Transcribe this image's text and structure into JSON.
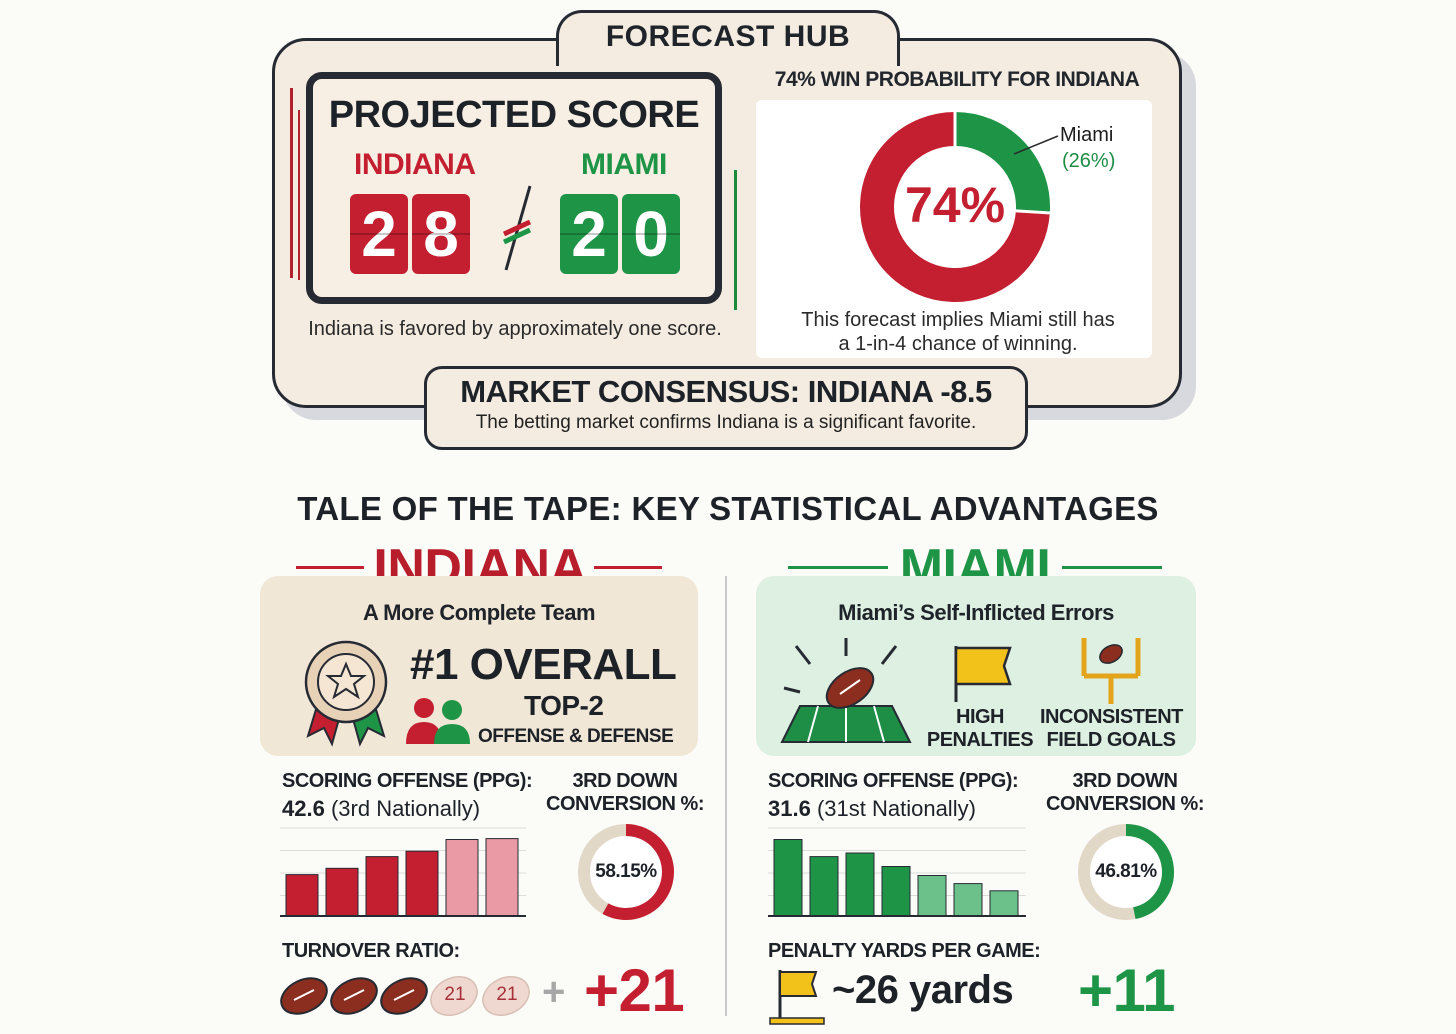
{
  "hub": {
    "title": "FORECAST HUB",
    "projected": {
      "title": "PROJECTED SCORE",
      "team_a": "INDIANA",
      "team_b": "MIAMI",
      "score_a_digits": [
        "2",
        "8"
      ],
      "score_b_digits": [
        "2",
        "0"
      ],
      "note": "Indiana is favored by approximately one score."
    },
    "probability": {
      "title": "74% WIN PROBABILITY FOR INDIANA",
      "center_label": "74%",
      "indiana_pct": 74,
      "miami_pct": 26,
      "miami_label": "Miami",
      "miami_pct_label": "(26%)",
      "note_line1": "This forecast implies Miami still has",
      "note_line2": "a 1-in-4 chance of winning."
    },
    "market": {
      "title": "MARKET CONSENSUS: INDIANA -8.5",
      "subtitle": "The betting market confirms Indiana is a significant favorite."
    }
  },
  "tape": {
    "title": "TALE OF THE TAPE: KEY STATISTICAL ADVANTAGES",
    "indiana": {
      "name": "INDIANA",
      "subtitle": "A More Complete Team",
      "overall": "#1 OVERALL",
      "top2": "TOP-2",
      "offense_defense": "OFFENSE & DEFENSE",
      "scoring_label": "SCORING OFFENSE (PPG):",
      "scoring_value": "42.6",
      "scoring_rank": "(3rd Nationally)",
      "third_down_line1": "3RD DOWN",
      "third_down_line2": "CONVERSION %:",
      "third_down_value": "58.15%",
      "third_down_pct": 58.15,
      "turnover_label": "TURNOVER RATIO:",
      "turnover_tag1": "21",
      "turnover_tag2": "21",
      "turnover_plus": "+",
      "turnover_value": "+21",
      "bars": [
        0.46,
        0.53,
        0.66,
        0.72,
        0.85,
        0.86
      ],
      "color": "#c41f30"
    },
    "miami": {
      "name": "MIAMI",
      "subtitle": "Miami’s Self-Inflicted Errors",
      "icon_high_line1": "HIGH",
      "icon_high_line2": "PENALTIES",
      "icon_fg_line1": "INCONSISTENT",
      "icon_fg_line2": "FIELD GOALS",
      "scoring_label": "SCORING OFFENSE (PPG):",
      "scoring_value": "31.6",
      "scoring_rank": "(31st Nationally)",
      "third_down_line1": "3RD DOWN",
      "third_down_line2": "CONVERSION %:",
      "third_down_value": "46.81%",
      "third_down_pct": 46.81,
      "penalty_label": "PENALTY YARDS PER GAME:",
      "penalty_value": "~26 yards",
      "penalty_diff": "+11",
      "bars": [
        0.85,
        0.66,
        0.7,
        0.55,
        0.45,
        0.36,
        0.28
      ],
      "color": "#1e9446"
    }
  }
}
